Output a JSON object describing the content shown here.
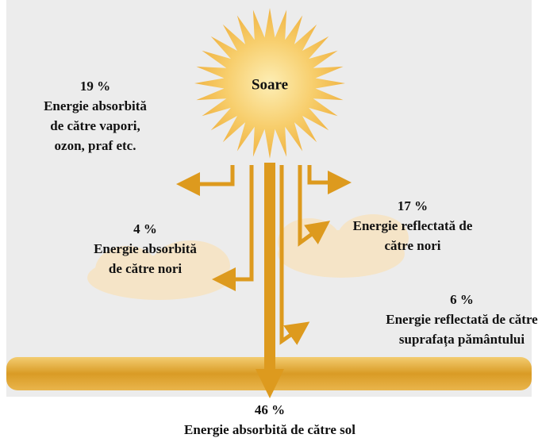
{
  "sun": {
    "label": "Soare"
  },
  "flows": [
    {
      "percent": "19 %",
      "lines": [
        "Energie absorbită",
        "de către vapori,",
        "ozon, praf etc."
      ]
    },
    {
      "percent": "4 %",
      "lines": [
        "Energie absorbită",
        "de către nori"
      ]
    },
    {
      "percent": "17 %",
      "lines": [
        "Energie reflectată de",
        "către nori"
      ]
    },
    {
      "percent": "6 %",
      "lines": [
        "Energie reflectată de către",
        "suprafața pământului"
      ]
    },
    {
      "percent": "46 %",
      "lines": [
        "Energie absorbită de către sol"
      ]
    }
  ]
}
